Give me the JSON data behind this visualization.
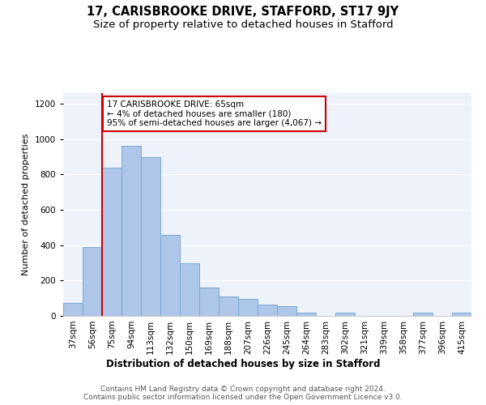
{
  "title": "17, CARISBROOKE DRIVE, STAFFORD, ST17 9JY",
  "subtitle": "Size of property relative to detached houses in Stafford",
  "xlabel": "Distribution of detached houses by size in Stafford",
  "ylabel": "Number of detached properties",
  "categories": [
    "37sqm",
    "56sqm",
    "75sqm",
    "94sqm",
    "113sqm",
    "132sqm",
    "150sqm",
    "169sqm",
    "188sqm",
    "207sqm",
    "226sqm",
    "245sqm",
    "264sqm",
    "283sqm",
    "302sqm",
    "321sqm",
    "339sqm",
    "358sqm",
    "377sqm",
    "396sqm",
    "415sqm"
  ],
  "values": [
    75,
    390,
    840,
    960,
    900,
    460,
    300,
    160,
    110,
    95,
    65,
    55,
    20,
    0,
    20,
    0,
    0,
    0,
    20,
    0,
    20
  ],
  "bar_color": "#aec6e8",
  "bar_edge_color": "#7aaad4",
  "annotation_text": "17 CARISBROOKE DRIVE: 65sqm\n← 4% of detached houses are smaller (180)\n95% of semi-detached houses are larger (4,067) →",
  "annotation_box_color": "#ffffff",
  "annotation_box_edge_color": "#cc0000",
  "property_line_color": "#cc0000",
  "background_color": "#eef2fb",
  "ylim": [
    0,
    1260
  ],
  "yticks": [
    0,
    200,
    400,
    600,
    800,
    1000,
    1200
  ],
  "footer": "Contains HM Land Registry data © Crown copyright and database right 2024.\nContains public sector information licensed under the Open Government Licence v3.0.",
  "title_fontsize": 10.5,
  "subtitle_fontsize": 9.5,
  "xlabel_fontsize": 8.5,
  "ylabel_fontsize": 8,
  "tick_fontsize": 7.5,
  "footer_fontsize": 6.5,
  "annot_fontsize": 7.5
}
